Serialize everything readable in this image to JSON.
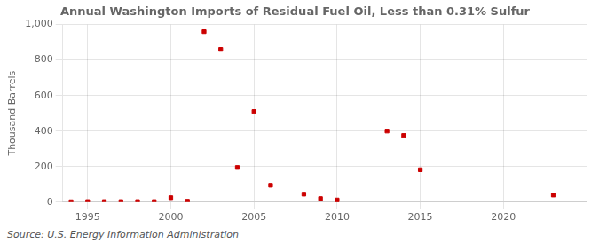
{
  "chart_data": {
    "type": "scatter",
    "title": "Annual Washington Imports of Residual Fuel Oil, Less than 0.31% Sulfur",
    "ylabel": "Thousand Barrels",
    "annotations": [
      "Source: U.S. Energy Information Administration"
    ],
    "x": [
      1994,
      1995,
      1996,
      1997,
      1998,
      1999,
      2000,
      2001,
      2002,
      2003,
      2004,
      2005,
      2006,
      2008,
      2009,
      2010,
      2013,
      2014,
      2015,
      2023
    ],
    "values": [
      2,
      3,
      3,
      3,
      3,
      3,
      25,
      5,
      960,
      860,
      195,
      510,
      95,
      45,
      20,
      12,
      400,
      375,
      182,
      40
    ],
    "color": "#cc0000",
    "marker": "square",
    "xlim": [
      1993.5,
      2025
    ],
    "xticks": [
      1995,
      2000,
      2005,
      2010,
      2015,
      2020
    ],
    "ylim": [
      0,
      1000
    ],
    "yticks": [
      0,
      200,
      400,
      600,
      800,
      {
        "value": 1000,
        "label": "1,000"
      }
    ],
    "grid": true
  }
}
